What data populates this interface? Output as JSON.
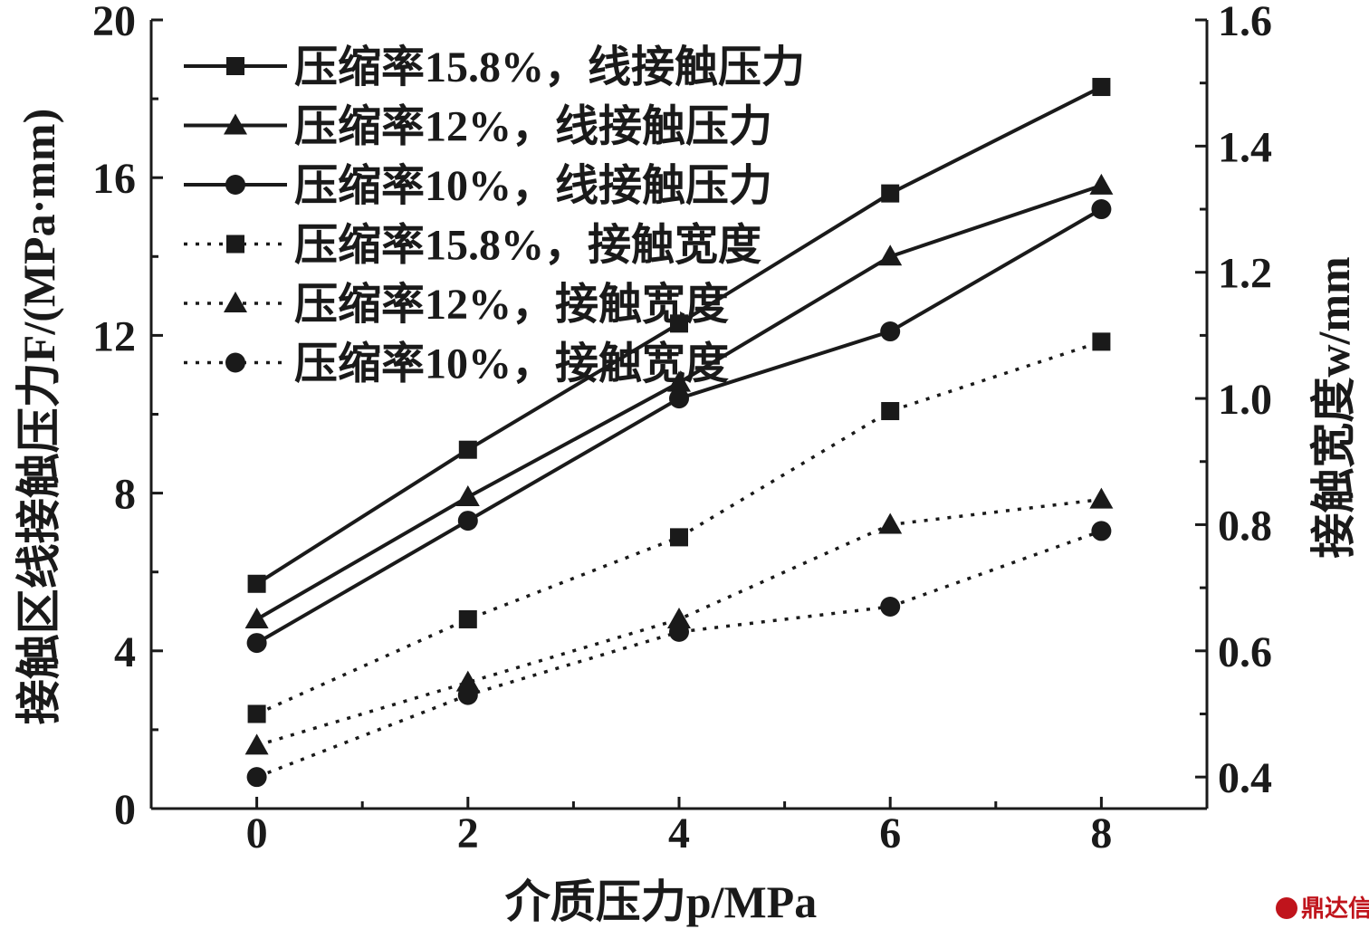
{
  "chart_data": {
    "type": "line",
    "x": [
      0,
      2,
      4,
      6,
      8
    ],
    "xlabel": "介质压力p/MPa",
    "ylabel_left": "接触区线接触压力F/(MPa·mm)",
    "ylabel_right": "接触宽度w/mm",
    "xlim": [
      -1,
      9
    ],
    "ylim_left": [
      0,
      20
    ],
    "ylim_right": [
      0.35,
      1.6
    ],
    "x_ticks": [
      "0",
      "2",
      "4",
      "6",
      "8"
    ],
    "y_left_ticks": [
      "0",
      "4",
      "8",
      "12",
      "16",
      "20"
    ],
    "y_right_ticks": [
      "0.4",
      "0.6",
      "0.8",
      "1.0",
      "1.2",
      "1.4",
      "1.6"
    ],
    "grid": false,
    "legend_position": "top-left",
    "series": [
      {
        "name": "压缩率15.8%，线接触压力",
        "axis": "left",
        "marker": "square",
        "line": "solid",
        "values": [
          5.7,
          9.1,
          12.3,
          15.6,
          18.3
        ]
      },
      {
        "name": "压缩率12%，线接触压力",
        "axis": "left",
        "marker": "triangle",
        "line": "solid",
        "values": [
          4.8,
          7.9,
          10.8,
          14.0,
          15.8
        ]
      },
      {
        "name": "压缩率10%，线接触压力",
        "axis": "left",
        "marker": "circle",
        "line": "solid",
        "values": [
          4.2,
          7.3,
          10.4,
          12.1,
          15.2
        ]
      },
      {
        "name": "压缩率15.8%，接触宽度",
        "axis": "right",
        "marker": "square",
        "line": "dotted",
        "values": [
          0.5,
          0.65,
          0.78,
          0.98,
          1.09
        ]
      },
      {
        "name": "压缩率12%，接触宽度",
        "axis": "right",
        "marker": "triangle",
        "line": "dotted",
        "values": [
          0.45,
          0.55,
          0.65,
          0.8,
          0.84
        ]
      },
      {
        "name": "压缩率10%，接触宽度",
        "axis": "right",
        "marker": "circle",
        "line": "dotted",
        "values": [
          0.4,
          0.53,
          0.63,
          0.67,
          0.79
        ]
      }
    ]
  },
  "watermark": {
    "text": "鼎达信",
    "color": "#c0141c"
  },
  "colors": {
    "ink": "#1a1a1a"
  }
}
